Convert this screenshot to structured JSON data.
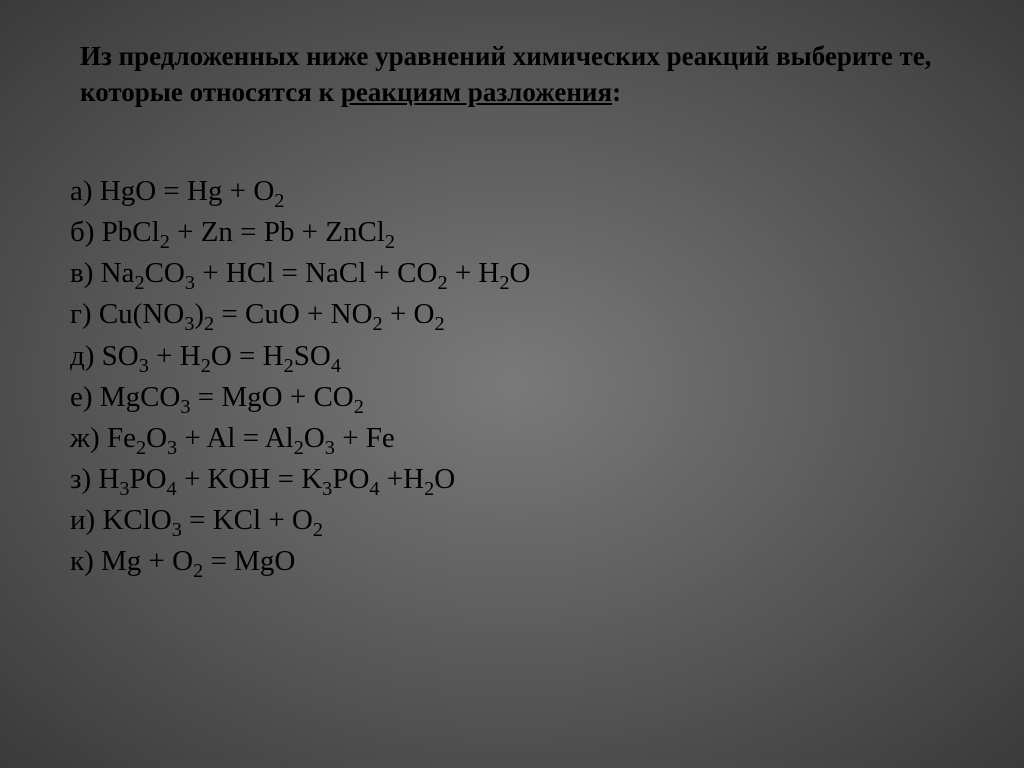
{
  "slide": {
    "background_gradient": [
      "#7a7a7a",
      "#5a5a5a",
      "#3a3a3a"
    ],
    "title_plain": "Из предложенных ниже уравнений химических реакций выберите те, которые относятся к ",
    "title_underlined": "реакциям разложения",
    "title_tail": ":",
    "title_fontsize": 27,
    "title_color": "#000000",
    "equation_fontsize": 29,
    "equation_color": "#000000",
    "font_family": "Times New Roman",
    "equations": [
      {
        "label": "а)",
        "formula": "HgO = Hg + O2"
      },
      {
        "label": "б)",
        "formula": "PbCl2 + Zn = Pb + ZnCl2"
      },
      {
        "label": "в)",
        "formula": "Na2CO3 + HCl = NaCl + CO2 + H2O"
      },
      {
        "label": "г)",
        "formula": "Cu(NO3)2 = CuO + NO2 + O2"
      },
      {
        "label": "д)",
        "formula": "SO3 + H2O = H2SO4"
      },
      {
        "label": "е)",
        "formula": "MgCO3 = MgO + CO2"
      },
      {
        "label": "ж)",
        "formula": "Fe2O3 + Al = Al2O3 + Fe"
      },
      {
        "label": "з)",
        "formula": "H3PO4 + KOH = K3PO4 +H2O"
      },
      {
        "label": "и)",
        "formula": "KClO3 = KCl + O2"
      },
      {
        "label": "к)",
        "formula": "Mg + O2 = MgO"
      }
    ]
  }
}
